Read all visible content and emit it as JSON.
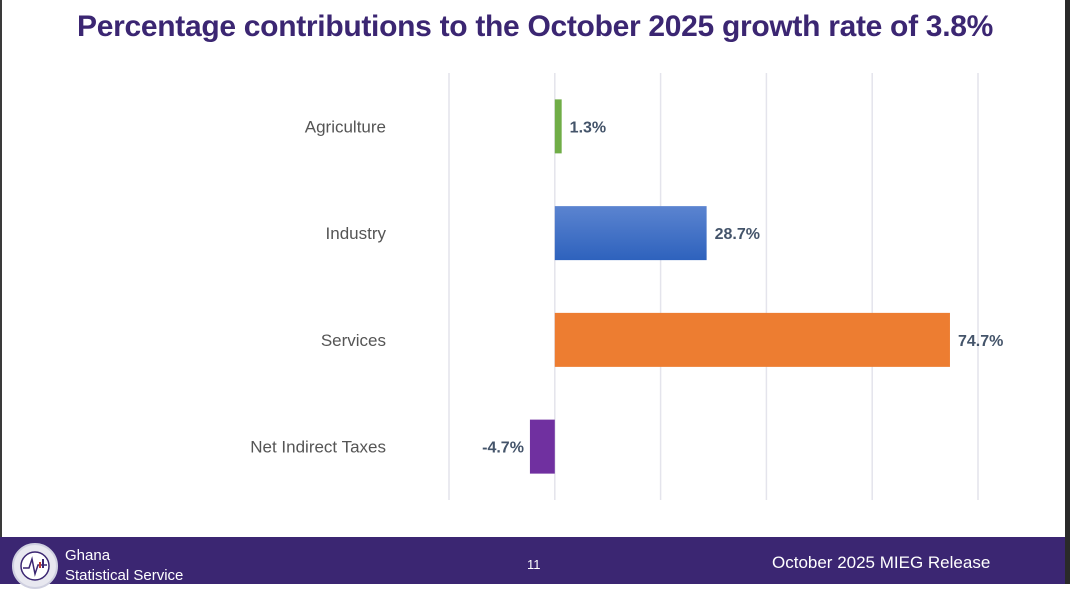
{
  "chart_data": {
    "type": "bar",
    "orientation": "horizontal",
    "title": "Percentage contributions to the October 2025 growth rate of 3.8%",
    "categories": [
      "Agriculture",
      "Industry",
      "Services",
      "Net Indirect Taxes"
    ],
    "values": [
      1.3,
      28.7,
      74.7,
      -4.7
    ],
    "data_labels": [
      "1.3%",
      "28.7%",
      "74.7%",
      "-4.7%"
    ],
    "colors": [
      "#70ad47",
      "#3a6cc8",
      "#ed7d31",
      "#7030a0"
    ],
    "xlim": [
      -20,
      80
    ],
    "grid": true
  },
  "footer": {
    "org_line1": "Ghana",
    "org_line2": "Statistical Service",
    "page_number": "11",
    "release": "October 2025 MIEG Release"
  }
}
